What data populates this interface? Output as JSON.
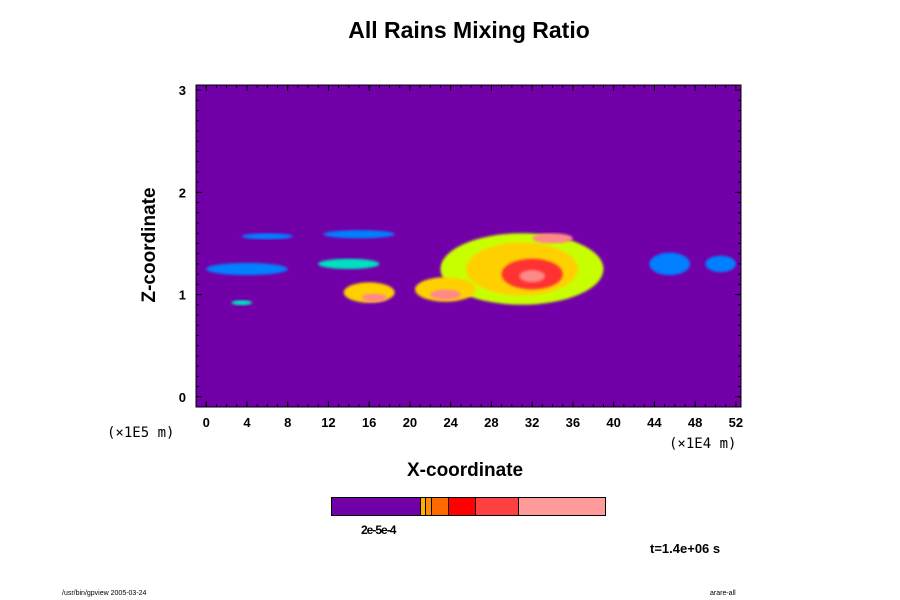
{
  "chart_data": {
    "type": "heatmap",
    "title": "All Rains Mixing Ratio",
    "xlabel": "X-coordinate",
    "ylabel": "Z-coordinate",
    "x_unit_label": "(×1E4 m)",
    "y_unit_label": "(×1E5 m)",
    "xlim": [
      -1,
      52.5
    ],
    "ylim": [
      -0.1,
      3.05
    ],
    "x_ticks": [
      0,
      4,
      8,
      12,
      16,
      20,
      24,
      28,
      32,
      36,
      40,
      44,
      48,
      52
    ],
    "y_ticks": [
      0,
      1,
      2,
      3
    ],
    "background_color": "#7200a8",
    "colorbar_label": "2e-5e-4",
    "colorbar_colors": [
      "#7200a8",
      "#ffb000",
      "#ff8c00",
      "#ff6a00",
      "#ff0000",
      "#ff4040",
      "#ff9b9b"
    ],
    "fields": [
      {
        "x_center": 6.0,
        "z_center": 1.57,
        "x_width": 5.0,
        "z_height": 0.06,
        "level": 1
      },
      {
        "x_center": 15.0,
        "z_center": 1.59,
        "x_width": 7.0,
        "z_height": 0.08,
        "level": 1
      },
      {
        "x_center": 4.0,
        "z_center": 1.25,
        "x_width": 8.0,
        "z_height": 0.12,
        "level": 1
      },
      {
        "x_center": 14.0,
        "z_center": 1.3,
        "x_width": 6.0,
        "z_height": 0.1,
        "level": 2
      },
      {
        "x_center": 3.5,
        "z_center": 0.92,
        "x_width": 2.0,
        "z_height": 0.05,
        "level": 2
      },
      {
        "x_center": 16.0,
        "z_center": 1.02,
        "x_width": 5.0,
        "z_height": 0.2,
        "level": 4
      },
      {
        "x_center": 16.5,
        "z_center": 0.97,
        "x_width": 2.5,
        "z_height": 0.08,
        "level": 6
      },
      {
        "x_center": 23.5,
        "z_center": 1.05,
        "x_width": 6.0,
        "z_height": 0.24,
        "level": 4
      },
      {
        "x_center": 23.5,
        "z_center": 1.0,
        "x_width": 3.0,
        "z_height": 0.1,
        "level": 6
      },
      {
        "x_center": 31.0,
        "z_center": 1.25,
        "x_width": 16.0,
        "z_height": 0.7,
        "level": 3
      },
      {
        "x_center": 31.0,
        "z_center": 1.25,
        "x_width": 11.0,
        "z_height": 0.52,
        "level": 4
      },
      {
        "x_center": 32.0,
        "z_center": 1.2,
        "x_width": 6.0,
        "z_height": 0.3,
        "level": 5
      },
      {
        "x_center": 32.0,
        "z_center": 1.18,
        "x_width": 2.5,
        "z_height": 0.12,
        "level": 6
      },
      {
        "x_center": 34.0,
        "z_center": 1.55,
        "x_width": 4.0,
        "z_height": 0.1,
        "level": 6
      },
      {
        "x_center": 45.5,
        "z_center": 1.3,
        "x_width": 4.0,
        "z_height": 0.22,
        "level": 1
      },
      {
        "x_center": 50.5,
        "z_center": 1.3,
        "x_width": 3.0,
        "z_height": 0.16,
        "level": 1
      }
    ],
    "level_colors": [
      "#7200a8",
      "#0080ff",
      "#00e0c0",
      "#c8ff00",
      "#ffd000",
      "#ff3030",
      "#ff8888"
    ]
  },
  "time_label": "t=1.4e+06 s",
  "footer_left": "/usr/bin/gpview 2005-03-24",
  "footer_right": "arare-all"
}
